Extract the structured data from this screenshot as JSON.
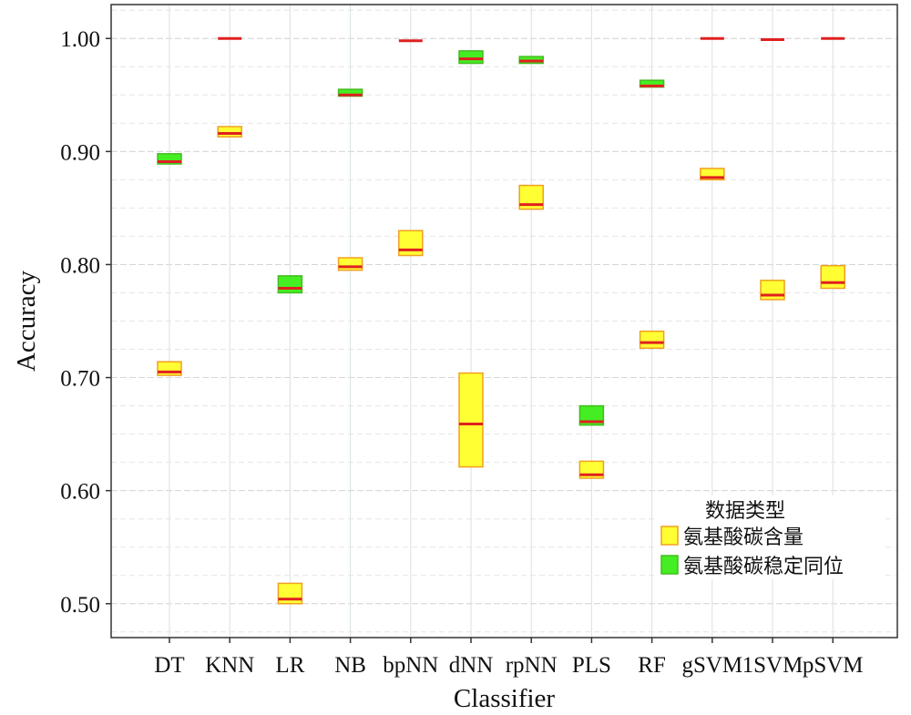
{
  "chart_data": {
    "type": "box",
    "xlabel": "Classifier",
    "ylabel": "Accuracy",
    "ylim": [
      0.47,
      1.03
    ],
    "yticks": [
      0.5,
      0.6,
      0.7,
      0.8,
      0.9,
      1.0
    ],
    "ytick_labels": [
      "0.50",
      "0.60",
      "0.70",
      "0.80",
      "0.90",
      "1.00"
    ],
    "grid": true,
    "categories": [
      "DT",
      "KNN",
      "LR",
      "NB",
      "bpNN",
      "dNN",
      "rpNN",
      "PLS",
      "RF",
      "gSVM",
      "1SVM",
      "pSVM"
    ],
    "legend": {
      "title": "数据类型",
      "placement": "bottom-right"
    },
    "series": [
      {
        "name": "氨基酸碳含量",
        "color": "#ffff33",
        "edge_color": "#f0a020",
        "median_color": "#e02020",
        "boxes": [
          {
            "category": "DT",
            "q1": 0.702,
            "median": 0.705,
            "q3": 0.714
          },
          {
            "category": "KNN",
            "q1": 0.913,
            "median": 0.916,
            "q3": 0.922
          },
          {
            "category": "LR",
            "q1": 0.5,
            "median": 0.504,
            "q3": 0.518
          },
          {
            "category": "NB",
            "q1": 0.795,
            "median": 0.798,
            "q3": 0.806
          },
          {
            "category": "bpNN",
            "q1": 0.808,
            "median": 0.813,
            "q3": 0.83
          },
          {
            "category": "dNN",
            "q1": 0.621,
            "median": 0.659,
            "q3": 0.704
          },
          {
            "category": "rpNN",
            "q1": 0.849,
            "median": 0.853,
            "q3": 0.87
          },
          {
            "category": "PLS",
            "q1": 0.611,
            "median": 0.614,
            "q3": 0.626
          },
          {
            "category": "RF",
            "q1": 0.726,
            "median": 0.731,
            "q3": 0.741
          },
          {
            "category": "gSVM",
            "q1": 0.875,
            "median": 0.877,
            "q3": 0.885
          },
          {
            "category": "1SVM",
            "q1": 0.769,
            "median": 0.773,
            "q3": 0.786
          },
          {
            "category": "pSVM",
            "q1": 0.779,
            "median": 0.784,
            "q3": 0.799
          }
        ]
      },
      {
        "name": "氨基酸碳稳定同位",
        "color": "#44ee22",
        "edge_color": "#44bb22",
        "median_color": "#e02020",
        "boxes": [
          {
            "category": "DT",
            "q1": 0.889,
            "median": 0.891,
            "q3": 0.898
          },
          {
            "category": "KNN",
            "q1": 1.0,
            "median": 1.0,
            "q3": 1.0
          },
          {
            "category": "LR",
            "q1": 0.775,
            "median": 0.779,
            "q3": 0.79
          },
          {
            "category": "NB",
            "q1": 0.949,
            "median": 0.95,
            "q3": 0.955
          },
          {
            "category": "bpNN",
            "q1": 0.997,
            "median": 0.998,
            "q3": 0.998
          },
          {
            "category": "dNN",
            "q1": 0.978,
            "median": 0.982,
            "q3": 0.989
          },
          {
            "category": "rpNN",
            "q1": 0.978,
            "median": 0.98,
            "q3": 0.984
          },
          {
            "category": "PLS",
            "q1": 0.658,
            "median": 0.661,
            "q3": 0.675
          },
          {
            "category": "RF",
            "q1": 0.957,
            "median": 0.958,
            "q3": 0.963
          },
          {
            "category": "gSVM",
            "q1": 1.0,
            "median": 1.0,
            "q3": 1.0
          },
          {
            "category": "1SVM",
            "q1": 0.999,
            "median": 0.999,
            "q3": 0.999
          },
          {
            "category": "pSVM",
            "q1": 1.0,
            "median": 1.0,
            "q3": 1.0
          }
        ]
      }
    ]
  }
}
